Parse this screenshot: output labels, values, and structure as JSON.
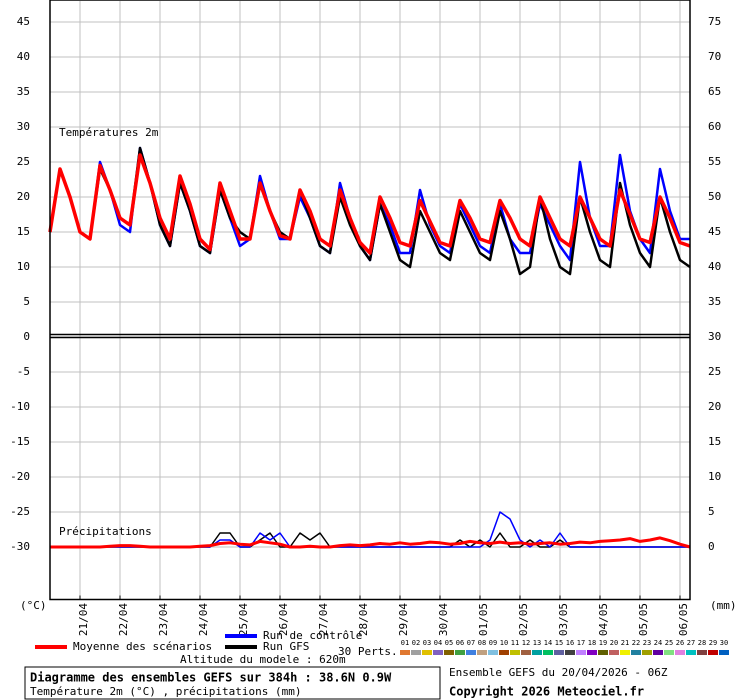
{
  "chart_data": {
    "type": "line",
    "annotations": {
      "temp_panel": "Températures 2m",
      "precip_panel": "Précipitations",
      "y_unit_left": "(°C)",
      "y_unit_right": "(mm)",
      "altitude": "Altitude du modele : 620m",
      "perts_label": "30 Perts."
    },
    "x": [
      0,
      6,
      12,
      18,
      24,
      30,
      36,
      42,
      48,
      54,
      60,
      66,
      72,
      78,
      84,
      90,
      96,
      102,
      108,
      114,
      120,
      126,
      132,
      138,
      144,
      150,
      156,
      162,
      168,
      174,
      180,
      186,
      192,
      198,
      204,
      210,
      216,
      222,
      228,
      234,
      240,
      246,
      252,
      258,
      264,
      270,
      276,
      282,
      288,
      294,
      300,
      306,
      312,
      318,
      324,
      330,
      336,
      342,
      348,
      354,
      360,
      366,
      372,
      378,
      384
    ],
    "xlim": [
      0,
      384
    ],
    "xticks": [
      {
        "value": 18,
        "label": "21/04"
      },
      {
        "value": 42,
        "label": "22/04"
      },
      {
        "value": 66,
        "label": "23/04"
      },
      {
        "value": 90,
        "label": "24/04"
      },
      {
        "value": 114,
        "label": "25/04"
      },
      {
        "value": 138,
        "label": "26/04"
      },
      {
        "value": 162,
        "label": "27/04"
      },
      {
        "value": 186,
        "label": "28/04"
      },
      {
        "value": 210,
        "label": "29/04"
      },
      {
        "value": 234,
        "label": "30/04"
      },
      {
        "value": 258,
        "label": "01/05"
      },
      {
        "value": 282,
        "label": "02/05"
      },
      {
        "value": 306,
        "label": "03/05"
      },
      {
        "value": 330,
        "label": "04/05"
      },
      {
        "value": 354,
        "label": "05/05"
      },
      {
        "value": 378,
        "label": "06/05"
      }
    ],
    "ylim": [
      -37.5,
      48
    ],
    "yticks": [
      45,
      40,
      35,
      30,
      25,
      20,
      15,
      10,
      5,
      0,
      -5,
      -10,
      -15,
      -20,
      -25,
      -30
    ],
    "y2lim": [
      -7.5,
      78
    ],
    "y2ticks": [
      75,
      70,
      65,
      60,
      55,
      50,
      45,
      40,
      35,
      30,
      25,
      20,
      15,
      10,
      5,
      0
    ],
    "grid": true,
    "series": [
      {
        "name": "Run de contrôle",
        "color": "#0000ff",
        "width": 2.5,
        "values": [
          15,
          24,
          20,
          15,
          14,
          25,
          21,
          16,
          15,
          27,
          22,
          16,
          13,
          22,
          18,
          13,
          12,
          21,
          17,
          13,
          14,
          23,
          18,
          14,
          14,
          20,
          17,
          13,
          12,
          22,
          17,
          13,
          11,
          19,
          16,
          12,
          12,
          21,
          16,
          13,
          12,
          19,
          16,
          13,
          12,
          19,
          14,
          12,
          12,
          19,
          16,
          13,
          11,
          25,
          17,
          13,
          13,
          26,
          18,
          14,
          12,
          24,
          18,
          14,
          14
        ]
      },
      {
        "name": "Run GFS",
        "color": "#000000",
        "width": 2.5,
        "values": [
          15,
          24,
          20,
          15,
          14,
          24,
          21,
          17,
          16,
          27,
          22,
          16,
          13,
          22,
          18,
          13,
          12,
          21,
          17,
          15,
          14,
          22,
          18,
          15,
          14,
          21,
          17,
          13,
          12,
          20,
          16,
          13,
          11,
          19,
          15,
          11,
          10,
          18,
          15,
          12,
          11,
          18,
          15,
          12,
          11,
          18,
          14,
          9,
          10,
          20,
          14,
          10,
          9,
          20,
          15,
          11,
          10,
          22,
          16,
          12,
          10,
          20,
          15,
          11,
          10
        ]
      },
      {
        "name": "Moyenne des scénarios",
        "color": "#ff0000",
        "width": 3.5,
        "values": [
          15,
          24,
          20,
          15,
          14,
          24.5,
          21,
          17,
          16,
          26,
          22,
          17,
          14,
          23,
          19,
          14,
          12.5,
          22,
          18,
          14,
          14,
          22,
          18,
          14.5,
          14,
          21,
          18,
          14,
          13,
          21,
          17,
          13.5,
          12,
          20,
          17,
          13.5,
          13,
          19.5,
          16.5,
          13.5,
          13,
          19.5,
          17,
          14,
          13.5,
          19.5,
          17,
          14,
          13,
          20,
          17,
          14,
          13,
          20,
          17,
          14,
          13,
          21,
          17.5,
          14,
          13.5,
          20,
          17,
          13.5,
          13
        ]
      },
      {
        "color": "#000000",
        "width": 1.5,
        "axis": "y2",
        "values": [
          0,
          0,
          0,
          0,
          0,
          0,
          0,
          0,
          0,
          0,
          0,
          0,
          0,
          0,
          0,
          0,
          0,
          2,
          2,
          0,
          0,
          1,
          2,
          0,
          0,
          2,
          1,
          2,
          0,
          0,
          0,
          0,
          0,
          0,
          0,
          0,
          0,
          0,
          0,
          0,
          0,
          1,
          0,
          1,
          0,
          2,
          0,
          0,
          1,
          0,
          0,
          1,
          0,
          0,
          0,
          0,
          0,
          0,
          0,
          0,
          0,
          0,
          0,
          0,
          0
        ]
      },
      {
        "color": "#0000ff",
        "width": 1.5,
        "axis": "y2",
        "values": [
          0,
          0,
          0,
          0,
          0,
          0,
          0,
          0,
          0,
          0,
          0,
          0,
          0,
          0,
          0,
          0,
          0,
          1,
          1,
          0,
          0,
          2,
          1,
          2,
          0,
          0,
          0,
          0,
          0,
          0,
          0,
          0,
          0,
          0,
          0,
          0,
          0,
          0,
          0,
          0,
          0,
          0,
          0,
          0,
          1,
          5,
          4,
          1,
          0,
          1,
          0,
          2,
          0,
          0,
          0,
          0,
          0,
          0,
          0,
          0,
          0,
          0,
          0,
          0,
          0
        ]
      },
      {
        "color": "#ff0000",
        "width": 3,
        "axis": "y2",
        "values": [
          0,
          0,
          0,
          0,
          0,
          0,
          0.1,
          0.2,
          0.2,
          0.1,
          0,
          0,
          0,
          0,
          0,
          0.1,
          0.2,
          0.5,
          0.6,
          0.4,
          0.3,
          0.8,
          0.6,
          0.4,
          0,
          0,
          0.1,
          0,
          0,
          0.2,
          0.3,
          0.2,
          0.3,
          0.5,
          0.4,
          0.6,
          0.4,
          0.5,
          0.7,
          0.6,
          0.4,
          0.5,
          0.8,
          0.6,
          0.5,
          0.7,
          0.5,
          0.6,
          0.4,
          0.5,
          0.6,
          0.4,
          0.5,
          0.7,
          0.6,
          0.8,
          0.9,
          1,
          1.2,
          0.8,
          1,
          1.3,
          0.9,
          0.4,
          0
        ]
      }
    ],
    "perturbations": [
      {
        "label": "01",
        "color": "#e07830"
      },
      {
        "label": "02",
        "color": "#a0a0a0"
      },
      {
        "label": "03",
        "color": "#e0c000"
      },
      {
        "label": "04",
        "color": "#8060c0"
      },
      {
        "label": "05",
        "color": "#806000"
      },
      {
        "label": "06",
        "color": "#40a040"
      },
      {
        "label": "07",
        "color": "#4080e0"
      },
      {
        "label": "08",
        "color": "#c0a080"
      },
      {
        "label": "09",
        "color": "#80c0e0"
      },
      {
        "label": "10",
        "color": "#a04000"
      },
      {
        "label": "11",
        "color": "#c0c000"
      },
      {
        "label": "12",
        "color": "#a06040"
      },
      {
        "label": "13",
        "color": "#00a0a0"
      },
      {
        "label": "14",
        "color": "#00c060"
      },
      {
        "label": "15",
        "color": "#6060a0"
      },
      {
        "label": "16",
        "color": "#404040"
      },
      {
        "label": "17",
        "color": "#c080ff"
      },
      {
        "label": "18",
        "color": "#8000c0"
      },
      {
        "label": "19",
        "color": "#606000"
      },
      {
        "label": "20",
        "color": "#c06060"
      },
      {
        "label": "21",
        "color": "#f0f000"
      },
      {
        "label": "22",
        "color": "#2080a0"
      },
      {
        "label": "23",
        "color": "#a0a000"
      },
      {
        "label": "24",
        "color": "#6000a0"
      },
      {
        "label": "25",
        "color": "#80e080"
      },
      {
        "label": "26",
        "color": "#e080e0"
      },
      {
        "label": "27",
        "color": "#00c0c0"
      },
      {
        "label": "28",
        "color": "#804040"
      },
      {
        "label": "29",
        "color": "#c00000"
      },
      {
        "label": "30",
        "color": "#0060c0"
      }
    ]
  },
  "footer": {
    "title": "Diagramme des ensembles GEFS sur 384h : 38.6N 0.9W",
    "subtitle": "Température 2m (°C) , précipitations (mm)",
    "run": "Ensemble GEFS du 20/04/2026 - 06Z",
    "copyright": "Copyright 2026 Meteociel.fr"
  }
}
